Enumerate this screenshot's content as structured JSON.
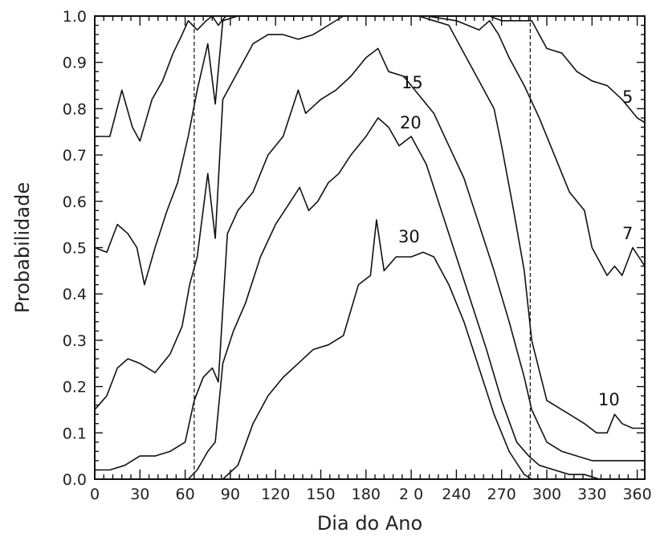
{
  "chart_data": {
    "type": "line",
    "title": "",
    "xlabel": "Dia do Ano",
    "ylabel": "Probabilidade",
    "xlim": [
      0,
      365
    ],
    "ylim": [
      0,
      1.0
    ],
    "x_ticks": [
      0,
      30,
      60,
      90,
      120,
      150,
      180,
      210,
      240,
      270,
      300,
      330,
      360
    ],
    "x_tick_labels": [
      "0",
      "30",
      "60",
      "90",
      "120",
      "150",
      "180",
      "2 0",
      "240",
      "270",
      "300",
      "330",
      "360"
    ],
    "y_ticks": [
      0.0,
      0.1,
      0.2,
      0.3,
      0.4,
      0.5,
      0.6,
      0.7,
      0.8,
      0.9,
      1.0
    ],
    "y_tick_labels": [
      "0.0",
      "0.1",
      "0.2",
      "0.3",
      "0.4",
      "0.5",
      "0.6",
      "0.7",
      "0.8",
      "0.9",
      "1.0"
    ],
    "reference_lines_x": [
      66,
      289
    ],
    "grid": false,
    "series": [
      {
        "name": "5",
        "x": [
          0,
          10,
          18,
          25,
          30,
          38,
          45,
          52,
          58,
          62,
          68,
          74,
          78,
          82,
          87,
          100,
          120,
          140,
          160,
          180,
          200,
          220,
          240,
          255,
          262,
          270,
          280,
          290,
          300,
          310,
          320,
          330,
          340,
          350,
          360,
          365
        ],
        "y": [
          0.74,
          0.74,
          0.84,
          0.76,
          0.73,
          0.82,
          0.86,
          0.92,
          0.96,
          0.99,
          0.97,
          0.99,
          1.0,
          0.98,
          1.0,
          1.0,
          1.0,
          1.0,
          1.0,
          1.0,
          1.0,
          1.0,
          1.0,
          1.0,
          1.0,
          0.99,
          0.99,
          0.99,
          0.93,
          0.92,
          0.88,
          0.86,
          0.85,
          0.82,
          0.78,
          0.77
        ]
      },
      {
        "name": "7",
        "x": [
          0,
          8,
          15,
          22,
          28,
          33,
          40,
          48,
          55,
          62,
          68,
          75,
          80,
          85,
          95,
          110,
          125,
          140,
          160,
          180,
          200,
          220,
          240,
          255,
          262,
          268,
          275,
          285,
          295,
          305,
          315,
          325,
          330,
          340,
          345,
          350,
          357,
          365
        ],
        "y": [
          0.5,
          0.49,
          0.55,
          0.53,
          0.5,
          0.42,
          0.5,
          0.58,
          0.64,
          0.74,
          0.84,
          0.94,
          0.81,
          0.99,
          1.0,
          1.0,
          1.0,
          1.0,
          1.0,
          1.0,
          1.0,
          1.0,
          0.99,
          0.97,
          0.99,
          0.96,
          0.91,
          0.85,
          0.78,
          0.7,
          0.62,
          0.58,
          0.5,
          0.44,
          0.46,
          0.44,
          0.5,
          0.46
        ]
      },
      {
        "name": "10",
        "x": [
          0,
          8,
          15,
          22,
          30,
          40,
          50,
          58,
          63,
          68,
          75,
          80,
          85,
          95,
          105,
          115,
          125,
          135,
          145,
          155,
          165,
          175,
          185,
          195,
          205,
          215,
          225,
          235,
          245,
          255,
          265,
          270,
          278,
          285,
          290,
          300,
          305,
          315,
          325,
          333,
          340,
          345,
          350,
          357,
          365
        ],
        "y": [
          0.15,
          0.18,
          0.24,
          0.26,
          0.25,
          0.23,
          0.27,
          0.33,
          0.42,
          0.48,
          0.66,
          0.52,
          0.82,
          0.88,
          0.94,
          0.96,
          0.96,
          0.95,
          0.96,
          0.98,
          1.0,
          1.0,
          1.0,
          1.0,
          1.0,
          1.0,
          0.99,
          0.98,
          0.92,
          0.86,
          0.8,
          0.72,
          0.58,
          0.45,
          0.3,
          0.17,
          0.16,
          0.14,
          0.12,
          0.1,
          0.1,
          0.14,
          0.12,
          0.11,
          0.11
        ]
      },
      {
        "name": "15",
        "x": [
          0,
          10,
          20,
          30,
          40,
          50,
          60,
          66,
          72,
          78,
          82,
          88,
          95,
          105,
          115,
          125,
          135,
          140,
          150,
          160,
          170,
          180,
          188,
          195,
          205,
          215,
          225,
          235,
          245,
          255,
          265,
          275,
          285,
          290,
          300,
          310,
          320,
          330,
          340,
          350,
          360,
          365
        ],
        "y": [
          0.02,
          0.02,
          0.03,
          0.05,
          0.05,
          0.06,
          0.08,
          0.17,
          0.22,
          0.24,
          0.21,
          0.53,
          0.58,
          0.62,
          0.7,
          0.74,
          0.84,
          0.79,
          0.82,
          0.84,
          0.87,
          0.91,
          0.93,
          0.88,
          0.87,
          0.83,
          0.79,
          0.72,
          0.65,
          0.55,
          0.45,
          0.34,
          0.22,
          0.15,
          0.08,
          0.06,
          0.05,
          0.04,
          0.04,
          0.04,
          0.04,
          0.04
        ]
      },
      {
        "name": "20",
        "x": [
          62,
          68,
          75,
          80,
          85,
          92,
          100,
          110,
          120,
          130,
          136,
          142,
          148,
          155,
          162,
          170,
          180,
          188,
          195,
          202,
          210,
          220,
          230,
          240,
          250,
          260,
          270,
          280,
          288,
          295,
          305,
          315,
          325,
          335,
          345,
          355,
          365
        ],
        "y": [
          0.0,
          0.02,
          0.06,
          0.08,
          0.25,
          0.32,
          0.38,
          0.48,
          0.55,
          0.6,
          0.63,
          0.58,
          0.6,
          0.64,
          0.66,
          0.7,
          0.74,
          0.78,
          0.76,
          0.72,
          0.74,
          0.68,
          0.58,
          0.48,
          0.38,
          0.28,
          0.17,
          0.08,
          0.05,
          0.03,
          0.02,
          0.01,
          0.01,
          0.0,
          0.0,
          0.0,
          0.0
        ]
      },
      {
        "name": "30",
        "x": [
          72,
          78,
          85,
          95,
          105,
          115,
          125,
          135,
          145,
          155,
          165,
          175,
          183,
          187,
          192,
          200,
          210,
          218,
          225,
          235,
          245,
          255,
          265,
          275,
          285,
          290
        ],
        "y": [
          0.0,
          0.0,
          0.0,
          0.03,
          0.12,
          0.18,
          0.22,
          0.25,
          0.28,
          0.29,
          0.31,
          0.42,
          0.44,
          0.56,
          0.45,
          0.48,
          0.48,
          0.49,
          0.48,
          0.42,
          0.34,
          0.24,
          0.14,
          0.06,
          0.01,
          0.0
        ]
      }
    ]
  }
}
